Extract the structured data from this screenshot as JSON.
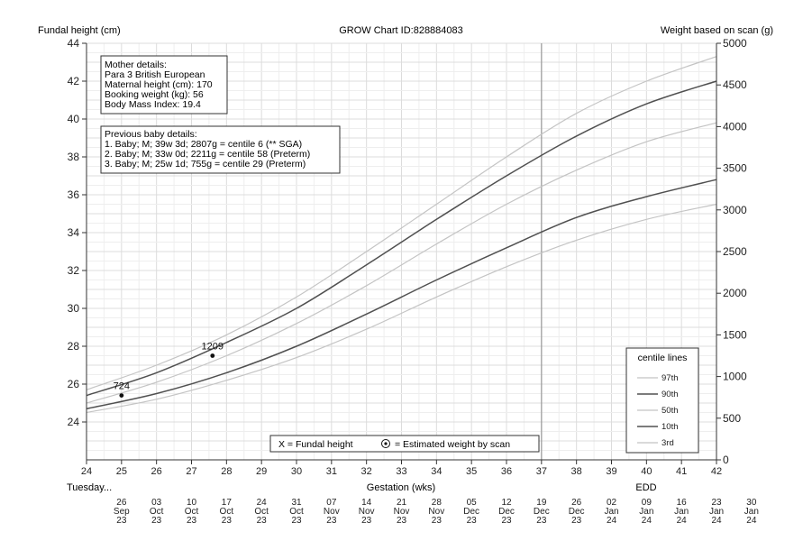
{
  "header": {
    "left_axis_title": "Fundal height (cm)",
    "center_title": "GROW Chart ID:828884083",
    "right_axis_title": "Weight based on scan (g)"
  },
  "mother_box": {
    "lines": [
      "Mother details:",
      "Para 3  British European",
      "Maternal height (cm): 170",
      "Booking weight (kg): 56",
      "Body Mass Index: 19.4"
    ]
  },
  "previous_box": {
    "lines": [
      "Previous baby details:",
      "1. Baby; M; 39w 3d; 2807g = centile 6 (** SGA)",
      "2. Baby; M; 33w 0d; 2211g = centile 58 (Preterm)",
      "3. Baby; M; 25w 1d; 755g = centile 29 (Preterm)"
    ]
  },
  "key_box": {
    "fundal_label": "X = Fundal height",
    "scan_label": "= Estimated weight by scan"
  },
  "centile_legend": {
    "title": "centile lines",
    "items": [
      {
        "label": "97th",
        "color": "#c4c4c4"
      },
      {
        "label": "90th",
        "color": "#505050"
      },
      {
        "label": "50th",
        "color": "#c4c4c4"
      },
      {
        "label": "10th",
        "color": "#505050"
      },
      {
        "label": "3rd",
        "color": "#c4c4c4"
      }
    ]
  },
  "bottom": {
    "start_day": "Tuesday...",
    "gestation_label": "Gestation (wks)",
    "edd_label": "EDD",
    "dates": [
      [
        "26",
        "Sep",
        "23"
      ],
      [
        "03",
        "Oct",
        "23"
      ],
      [
        "10",
        "Oct",
        "23"
      ],
      [
        "17",
        "Oct",
        "23"
      ],
      [
        "24",
        "Oct",
        "23"
      ],
      [
        "31",
        "Oct",
        "23"
      ],
      [
        "07",
        "Nov",
        "23"
      ],
      [
        "14",
        "Nov",
        "23"
      ],
      [
        "21",
        "Nov",
        "23"
      ],
      [
        "28",
        "Nov",
        "23"
      ],
      [
        "05",
        "Dec",
        "23"
      ],
      [
        "12",
        "Dec",
        "23"
      ],
      [
        "19",
        "Dec",
        "23"
      ],
      [
        "26",
        "Dec",
        "23"
      ],
      [
        "02",
        "Jan",
        "24"
      ],
      [
        "09",
        "Jan",
        "24"
      ],
      [
        "16",
        "Jan",
        "24"
      ],
      [
        "23",
        "Jan",
        "24"
      ],
      [
        "30",
        "Jan",
        "24"
      ]
    ]
  },
  "chart_data": {
    "type": "line",
    "x_label": "Gestation (wks)",
    "left_y_label": "Fundal height (cm)",
    "right_y_label": "Weight based on scan (g)",
    "xlim": [
      24,
      42
    ],
    "ylim_left": [
      22,
      44
    ],
    "ylim_right": [
      0,
      5000
    ],
    "x_ticks": [
      24,
      25,
      26,
      27,
      28,
      29,
      30,
      31,
      32,
      33,
      34,
      35,
      36,
      37,
      38,
      39,
      40,
      41,
      42
    ],
    "left_y_ticks": [
      24,
      26,
      28,
      30,
      32,
      34,
      36,
      38,
      40,
      42,
      44
    ],
    "right_y_ticks": [
      0,
      500,
      1000,
      1500,
      2000,
      2500,
      3000,
      3500,
      4000,
      4500,
      5000
    ],
    "edd_week": 37,
    "grid": true,
    "series": [
      {
        "name": "97th",
        "color": "#c4c4c4",
        "points": [
          [
            24,
            25.7
          ],
          [
            26,
            27.0
          ],
          [
            28,
            28.6
          ],
          [
            30,
            30.6
          ],
          [
            32,
            33.0
          ],
          [
            34,
            35.5
          ],
          [
            36,
            38.0
          ],
          [
            38,
            40.3
          ],
          [
            40,
            42.0
          ],
          [
            42,
            43.3
          ]
        ]
      },
      {
        "name": "90th",
        "color": "#505050",
        "points": [
          [
            24,
            25.4
          ],
          [
            26,
            26.6
          ],
          [
            28,
            28.2
          ],
          [
            30,
            30.0
          ],
          [
            32,
            32.3
          ],
          [
            34,
            34.7
          ],
          [
            36,
            37.0
          ],
          [
            38,
            39.1
          ],
          [
            40,
            40.8
          ],
          [
            42,
            42.0
          ]
        ]
      },
      {
        "name": "50th",
        "color": "#c4c4c4",
        "points": [
          [
            24,
            25.0
          ],
          [
            26,
            26.1
          ],
          [
            28,
            27.5
          ],
          [
            30,
            29.2
          ],
          [
            32,
            31.2
          ],
          [
            34,
            33.4
          ],
          [
            36,
            35.5
          ],
          [
            38,
            37.3
          ],
          [
            40,
            38.8
          ],
          [
            42,
            39.8
          ]
        ]
      },
      {
        "name": "10th",
        "color": "#505050",
        "points": [
          [
            24,
            24.7
          ],
          [
            26,
            25.5
          ],
          [
            28,
            26.6
          ],
          [
            30,
            28.0
          ],
          [
            32,
            29.7
          ],
          [
            34,
            31.5
          ],
          [
            36,
            33.2
          ],
          [
            38,
            34.8
          ],
          [
            40,
            35.9
          ],
          [
            42,
            36.8
          ]
        ]
      },
      {
        "name": "3rd",
        "color": "#c4c4c4",
        "points": [
          [
            24,
            24.5
          ],
          [
            26,
            25.2
          ],
          [
            28,
            26.2
          ],
          [
            30,
            27.4
          ],
          [
            32,
            28.9
          ],
          [
            34,
            30.6
          ],
          [
            36,
            32.2
          ],
          [
            38,
            33.6
          ],
          [
            40,
            34.7
          ],
          [
            42,
            35.5
          ]
        ]
      }
    ],
    "scan_points": [
      {
        "week": 25.0,
        "fundal_cm": 25.4,
        "weight_label": "724"
      },
      {
        "week": 27.6,
        "fundal_cm": 27.5,
        "weight_label": "1209"
      }
    ]
  }
}
